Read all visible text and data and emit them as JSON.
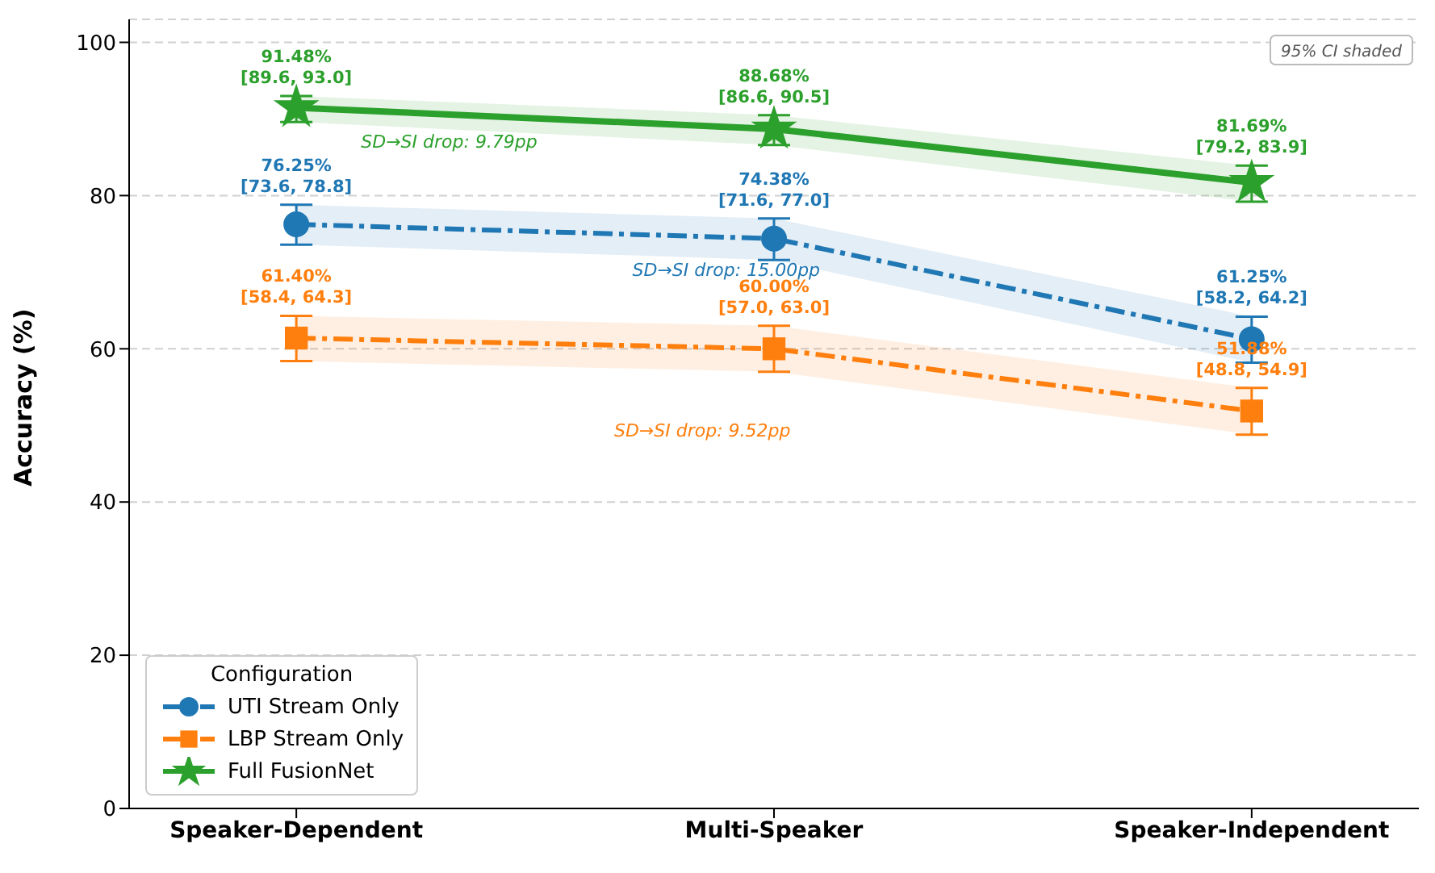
{
  "chart_data": {
    "type": "line",
    "ylabel": "Accuracy (%)",
    "legend_title": "Configuration",
    "categories": [
      "Speaker-Dependent",
      "Multi-Speaker",
      "Speaker-Independent"
    ],
    "series": [
      {
        "name": "UTI Stream Only",
        "color": "#1f77b4",
        "marker": "circle",
        "line_style": "dashed",
        "values": [
          76.25,
          74.38,
          61.25
        ],
        "errors": [
          [
            73.6,
            78.8
          ],
          [
            71.6,
            77.0
          ],
          [
            58.2,
            64.2
          ]
        ],
        "lower": [
          73.6,
          71.6,
          58.2
        ],
        "upper": [
          78.8,
          77.0,
          64.2
        ],
        "value_labels": [
          "76.25%\n[73.6, 78.8]",
          "74.38%\n[71.6, 77.0]",
          "61.25%\n[58.2, 64.2]"
        ]
      },
      {
        "name": "LBP Stream Only",
        "color": "#ff7f0e",
        "marker": "square",
        "line_style": "dashed",
        "values": [
          61.4,
          60.0,
          51.88
        ],
        "errors": [
          [
            58.4,
            64.3
          ],
          [
            57.0,
            63.0
          ],
          [
            48.8,
            54.9
          ]
        ],
        "lower": [
          58.4,
          57.0,
          48.8
        ],
        "upper": [
          64.3,
          63.0,
          54.9
        ],
        "value_labels": [
          "61.40%\n[58.4, 64.3]",
          "60.00%\n[57.0, 63.0]",
          "51.88%\n[48.8, 54.9]"
        ]
      },
      {
        "name": "Full FusionNet",
        "color": "#2ca02c",
        "marker": "star",
        "line_style": "solid",
        "values": [
          91.48,
          88.68,
          81.69
        ],
        "errors": [
          [
            89.6,
            93.0
          ],
          [
            86.6,
            90.5
          ],
          [
            79.2,
            83.9
          ]
        ],
        "lower": [
          89.6,
          86.6,
          79.2
        ],
        "upper": [
          93.0,
          90.5,
          83.9
        ],
        "value_labels": [
          "91.48%\n[89.6, 93.0]",
          "88.68%\n[86.6, 90.5]",
          "81.69%\n[79.2, 83.9]"
        ]
      }
    ],
    "annotations": [
      "SD→SI drop: 15.00pp",
      "SD→SI drop: 9.52pp",
      "SD→SI drop: 9.79pp",
      "95% CI shaded"
    ],
    "ylim": [
      0,
      103
    ],
    "yticks": [
      0,
      20,
      40,
      60,
      80,
      100
    ],
    "grid": "y",
    "legend": "bottom left"
  }
}
